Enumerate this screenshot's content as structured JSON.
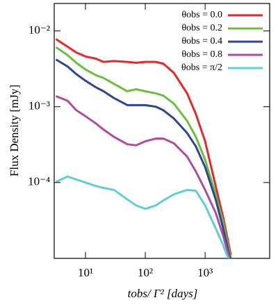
{
  "chart_data": {
    "type": "line",
    "xlabel": "tobs/ Γ² [days]",
    "ylabel": "Flux Density [mJy]",
    "log_x": true,
    "log_y": true,
    "xlim": [
      3,
      12000
    ],
    "ylim": [
      1e-05,
      0.023
    ],
    "xticks": [
      {
        "value": 10,
        "label": "10¹"
      },
      {
        "value": 100,
        "label": "10²"
      },
      {
        "value": 1000,
        "label": "10³"
      }
    ],
    "yticks": [
      {
        "value": 0.0001,
        "label": "10⁻⁴"
      },
      {
        "value": 0.001,
        "label": "10⁻³"
      },
      {
        "value": 0.01,
        "label": "10⁻²"
      }
    ],
    "legend": "upper right",
    "x": [
      3.2,
      5,
      7,
      10,
      15,
      20,
      30,
      50,
      70,
      100,
      150,
      200,
      300,
      500,
      700,
      1000,
      1500,
      2000,
      2700
    ],
    "series": [
      {
        "name": "θobs = 0.0",
        "color": "#e8262b",
        "values": [
          0.0078,
          0.0062,
          0.0052,
          0.0046,
          0.0043,
          0.0039,
          0.004,
          0.0039,
          0.0038,
          0.0039,
          0.0039,
          0.0037,
          0.0028,
          0.0015,
          0.0008,
          0.00035,
          9e-05,
          3.5e-05,
          1.1e-05
        ]
      },
      {
        "name": "θobs = 0.2",
        "color": "#6cbf3c",
        "values": [
          0.0061,
          0.0048,
          0.0038,
          0.0031,
          0.0026,
          0.0024,
          0.002,
          0.0016,
          0.0017,
          0.0016,
          0.0015,
          0.0014,
          0.0011,
          0.00065,
          0.0004,
          0.0002,
          7e-05,
          3e-05,
          1e-05
        ]
      },
      {
        "name": "θobs = 0.4",
        "color": "#2c4696",
        "values": [
          0.0042,
          0.0034,
          0.0027,
          0.0022,
          0.0018,
          0.0016,
          0.0013,
          0.00105,
          0.00105,
          0.00105,
          0.001,
          0.0009,
          0.0007,
          0.00045,
          0.0003,
          0.00016,
          6e-05,
          2.5e-05,
          9e-06
        ]
      },
      {
        "name": "θobs = 0.8",
        "color": "#b04ca0",
        "values": [
          0.00138,
          0.0012,
          0.0009,
          0.00075,
          0.0006,
          0.0005,
          0.0004,
          0.00032,
          0.00031,
          0.00035,
          0.00038,
          0.00038,
          0.00033,
          0.00022,
          0.00014,
          8e-05,
          4e-05,
          2e-05,
          8.5e-06
        ]
      },
      {
        "name": "θobs = π/2",
        "color": "#5fcfd6",
        "values": [
          0.000102,
          0.00012,
          0.00011,
          0.0001,
          9e-05,
          8.5e-05,
          8e-05,
          6e-05,
          5e-05,
          4.5e-05,
          5e-05,
          5.8e-05,
          7e-05,
          8e-05,
          7.8e-05,
          5e-05,
          2.5e-05,
          1.5e-05,
          8e-06
        ]
      }
    ]
  }
}
